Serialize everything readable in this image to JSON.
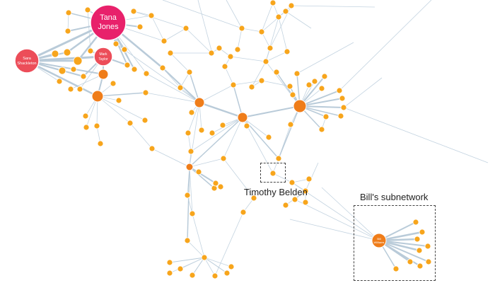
{
  "hubs": {
    "tana": "Tana Jones",
    "sara": "Sara Shackleton",
    "mark": "Mark Taylor",
    "bill": "Bill Williams",
    "timothy": "Timothy Belden"
  },
  "annotations": {
    "timothy_label": "Timothy Belden",
    "bill_subnetwork_label": "Bill's subnetwork"
  },
  "colors": {
    "node": "#f7a51c",
    "node_dark": "#ef7d1a",
    "hub_pink": "#e8216b",
    "hub_red": "#ec4d59",
    "edge": "#c3d3e0"
  }
}
